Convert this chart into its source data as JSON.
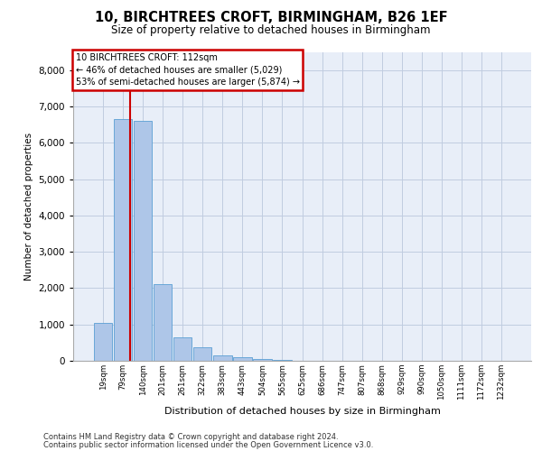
{
  "title_line1": "10, BIRCHTREES CROFT, BIRMINGHAM, B26 1EF",
  "title_line2": "Size of property relative to detached houses in Birmingham",
  "xlabel": "Distribution of detached houses by size in Birmingham",
  "ylabel": "Number of detached properties",
  "footer_line1": "Contains HM Land Registry data © Crown copyright and database right 2024.",
  "footer_line2": "Contains public sector information licensed under the Open Government Licence v3.0.",
  "property_label": "10 BIRCHTREES CROFT: 112sqm",
  "annotation_line1": "← 46% of detached houses are smaller (5,029)",
  "annotation_line2": "53% of semi-detached houses are larger (5,874) →",
  "bar_color": "#aec6e8",
  "bar_edge_color": "#5a9fd4",
  "vline_color": "#cc0000",
  "annotation_box_color": "#cc0000",
  "background_color": "#e8eef8",
  "categories": [
    "19sqm",
    "79sqm",
    "140sqm",
    "201sqm",
    "261sqm",
    "322sqm",
    "383sqm",
    "443sqm",
    "504sqm",
    "565sqm",
    "625sqm",
    "686sqm",
    "747sqm",
    "807sqm",
    "868sqm",
    "929sqm",
    "990sqm",
    "1050sqm",
    "1111sqm",
    "1172sqm",
    "1232sqm"
  ],
  "values": [
    1050,
    6650,
    6600,
    2100,
    650,
    380,
    155,
    90,
    40,
    18,
    8,
    0,
    0,
    0,
    0,
    0,
    0,
    0,
    0,
    0,
    0
  ],
  "ylim": [
    0,
    8500
  ],
  "yticks": [
    0,
    1000,
    2000,
    3000,
    4000,
    5000,
    6000,
    7000,
    8000
  ],
  "vline_position": 1.35,
  "grid_color": "#c0cce0"
}
